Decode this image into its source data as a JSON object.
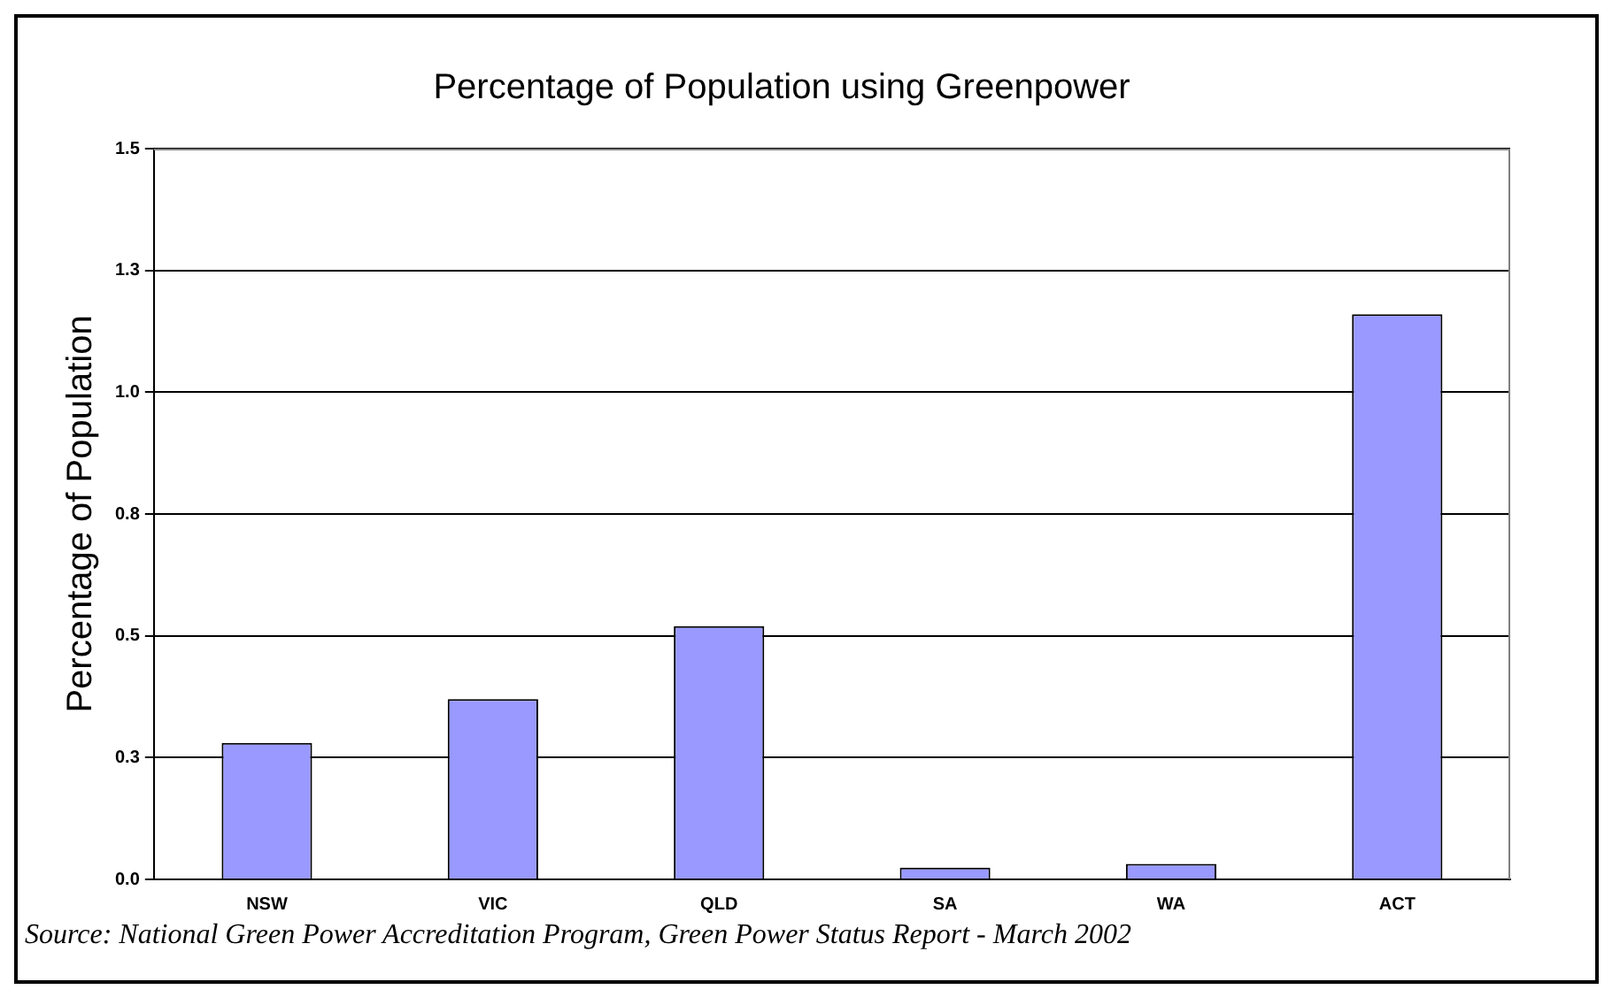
{
  "chart_data": {
    "type": "bar",
    "title": "Percentage of Population using Greenpower",
    "ylabel": "Percentage of Population",
    "categories": [
      "NSW",
      "VIC",
      "QLD",
      "SA",
      "WA",
      "ACT"
    ],
    "values": [
      0.28,
      0.37,
      0.52,
      0.024,
      0.032,
      1.16
    ],
    "color": "#9999ff",
    "ylim": [
      0,
      1.5
    ],
    "yticks": [
      {
        "value": 0,
        "label": "0.0"
      },
      {
        "value": 0.25,
        "label": "0.3"
      },
      {
        "value": 0.5,
        "label": "0.5"
      },
      {
        "value": 0.75,
        "label": "0.8"
      },
      {
        "value": 1,
        "label": "1.0"
      },
      {
        "value": 1.25,
        "label": "1.3"
      },
      {
        "value": 1.5,
        "label": "1.5"
      }
    ],
    "grid": "y",
    "legend": false,
    "annotations": [
      "Source:  National Green Power Accreditation Program, Green Power Status Report - March 2002"
    ]
  }
}
